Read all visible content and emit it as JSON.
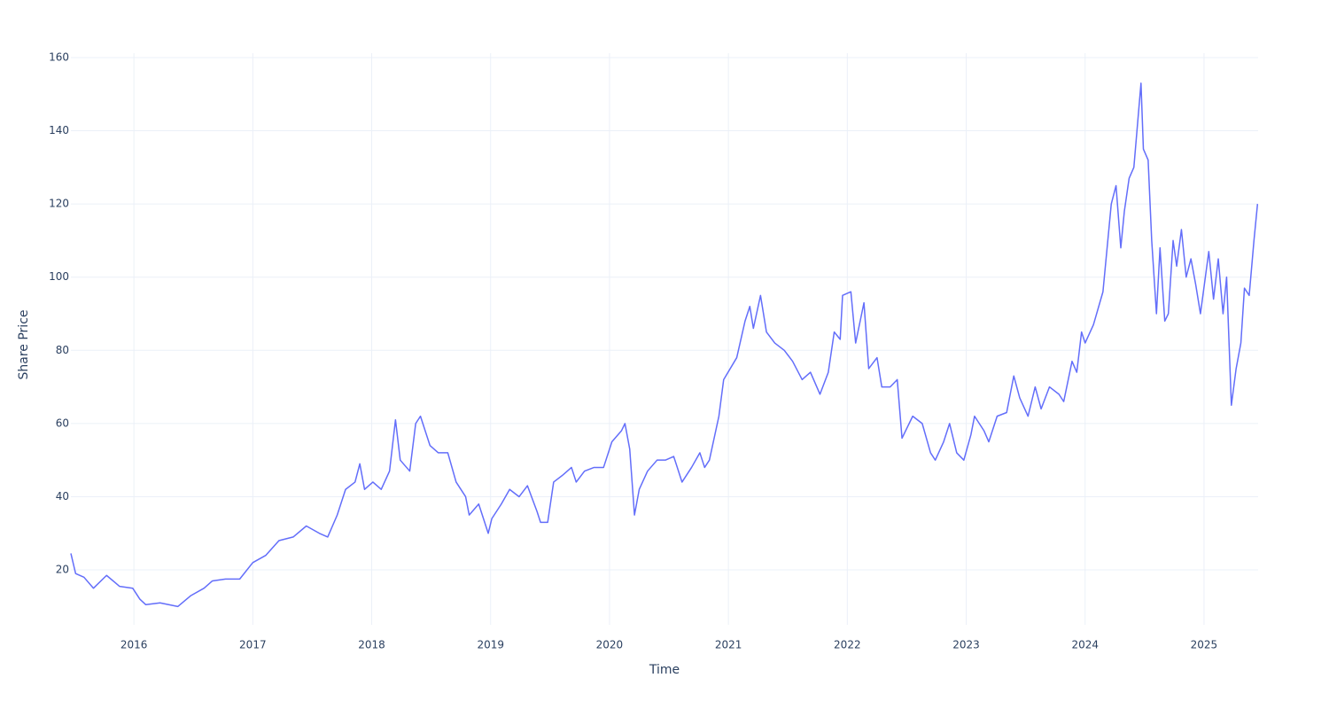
{
  "chart_data": {
    "type": "line",
    "x_label": "Time",
    "y_label": "Share Price",
    "x": [
      2015.47,
      2015.51,
      2015.58,
      2015.66,
      2015.77,
      2015.88,
      2015.99,
      2016.05,
      2016.1,
      2016.22,
      2016.37,
      2016.48,
      2016.59,
      2016.66,
      2016.77,
      2016.89,
      2017.0,
      2017.11,
      2017.22,
      2017.34,
      2017.45,
      2017.56,
      2017.63,
      2017.71,
      2017.78,
      2017.86,
      2017.9,
      2017.94,
      2018.01,
      2018.08,
      2018.15,
      2018.2,
      2018.24,
      2018.32,
      2018.37,
      2018.41,
      2018.49,
      2018.56,
      2018.64,
      2018.71,
      2018.79,
      2018.82,
      2018.9,
      2018.98,
      2019.01,
      2019.09,
      2019.16,
      2019.24,
      2019.31,
      2019.39,
      2019.42,
      2019.48,
      2019.53,
      2019.61,
      2019.68,
      2019.72,
      2019.79,
      2019.87,
      2019.95,
      2020.02,
      2020.1,
      2020.13,
      2020.17,
      2020.21,
      2020.25,
      2020.32,
      2020.4,
      2020.47,
      2020.54,
      2020.61,
      2020.69,
      2020.76,
      2020.8,
      2020.84,
      2020.92,
      2020.96,
      2021.07,
      2021.14,
      2021.18,
      2021.21,
      2021.27,
      2021.32,
      2021.39,
      2021.47,
      2021.54,
      2021.62,
      2021.69,
      2021.77,
      2021.84,
      2021.89,
      2021.94,
      2021.96,
      2022.03,
      2022.07,
      2022.14,
      2022.18,
      2022.25,
      2022.29,
      2022.36,
      2022.42,
      2022.46,
      2022.55,
      2022.63,
      2022.7,
      2022.74,
      2022.81,
      2022.86,
      2022.92,
      2022.98,
      2023.04,
      2023.07,
      2023.15,
      2023.19,
      2023.26,
      2023.34,
      2023.4,
      2023.45,
      2023.52,
      2023.58,
      2023.63,
      2023.7,
      2023.78,
      2023.82,
      2023.89,
      2023.93,
      2023.97,
      2024.0,
      2024.07,
      2024.15,
      2024.22,
      2024.26,
      2024.3,
      2024.33,
      2024.37,
      2024.41,
      2024.47,
      2024.49,
      2024.53,
      2024.56,
      2024.6,
      2024.63,
      2024.67,
      2024.7,
      2024.74,
      2024.77,
      2024.81,
      2024.85,
      2024.89,
      2024.93,
      2024.97,
      2025.04,
      2025.08,
      2025.12,
      2025.16,
      2025.19,
      2025.23,
      2025.27,
      2025.31,
      2025.34,
      2025.38,
      2025.42,
      2025.45
    ],
    "series": [
      {
        "name": "Share Price",
        "color": "#636efa",
        "values": [
          24.5,
          19,
          18,
          15,
          18.5,
          15.5,
          15,
          12,
          10.5,
          11,
          10,
          13,
          15,
          17,
          17.5,
          17.5,
          22,
          24,
          28,
          29,
          32,
          30,
          29,
          35,
          42,
          44,
          49,
          42,
          44,
          42,
          47,
          61,
          50,
          47,
          60,
          62,
          54,
          52,
          52,
          44,
          40,
          35,
          38,
          30,
          34,
          38,
          42,
          40,
          43,
          36,
          33,
          33,
          44,
          46,
          48,
          44,
          47,
          48,
          48,
          55,
          58,
          60,
          53,
          35,
          42,
          47,
          50,
          50,
          51,
          44,
          48,
          52,
          48,
          50,
          62,
          72,
          78,
          88,
          92,
          86,
          95,
          85,
          82,
          80,
          77,
          72,
          74,
          68,
          74,
          85,
          83,
          95,
          96,
          82,
          93,
          75,
          78,
          70,
          70,
          72,
          56,
          62,
          60,
          52,
          50,
          55,
          60,
          52,
          50,
          57,
          62,
          58,
          55,
          62,
          63,
          73,
          67,
          62,
          70,
          64,
          70,
          68,
          66,
          77,
          74,
          85,
          82,
          87,
          96,
          120,
          125,
          108,
          118,
          127,
          130,
          153,
          135,
          132,
          110,
          90,
          108,
          88,
          90,
          110,
          103,
          113,
          100,
          105,
          98,
          90,
          107,
          94,
          105,
          90,
          100,
          65,
          75,
          82,
          97,
          95,
          110,
          120
        ]
      }
    ],
    "xlim": [
      2015.47,
      2025.455
    ],
    "xticks": [
      2016,
      2017,
      2018,
      2019,
      2020,
      2021,
      2022,
      2023,
      2024,
      2025
    ],
    "ylim": [
      5,
      161.2
    ],
    "yticks": [
      20,
      40,
      60,
      80,
      100,
      120,
      140,
      160
    ],
    "grid": true
  }
}
